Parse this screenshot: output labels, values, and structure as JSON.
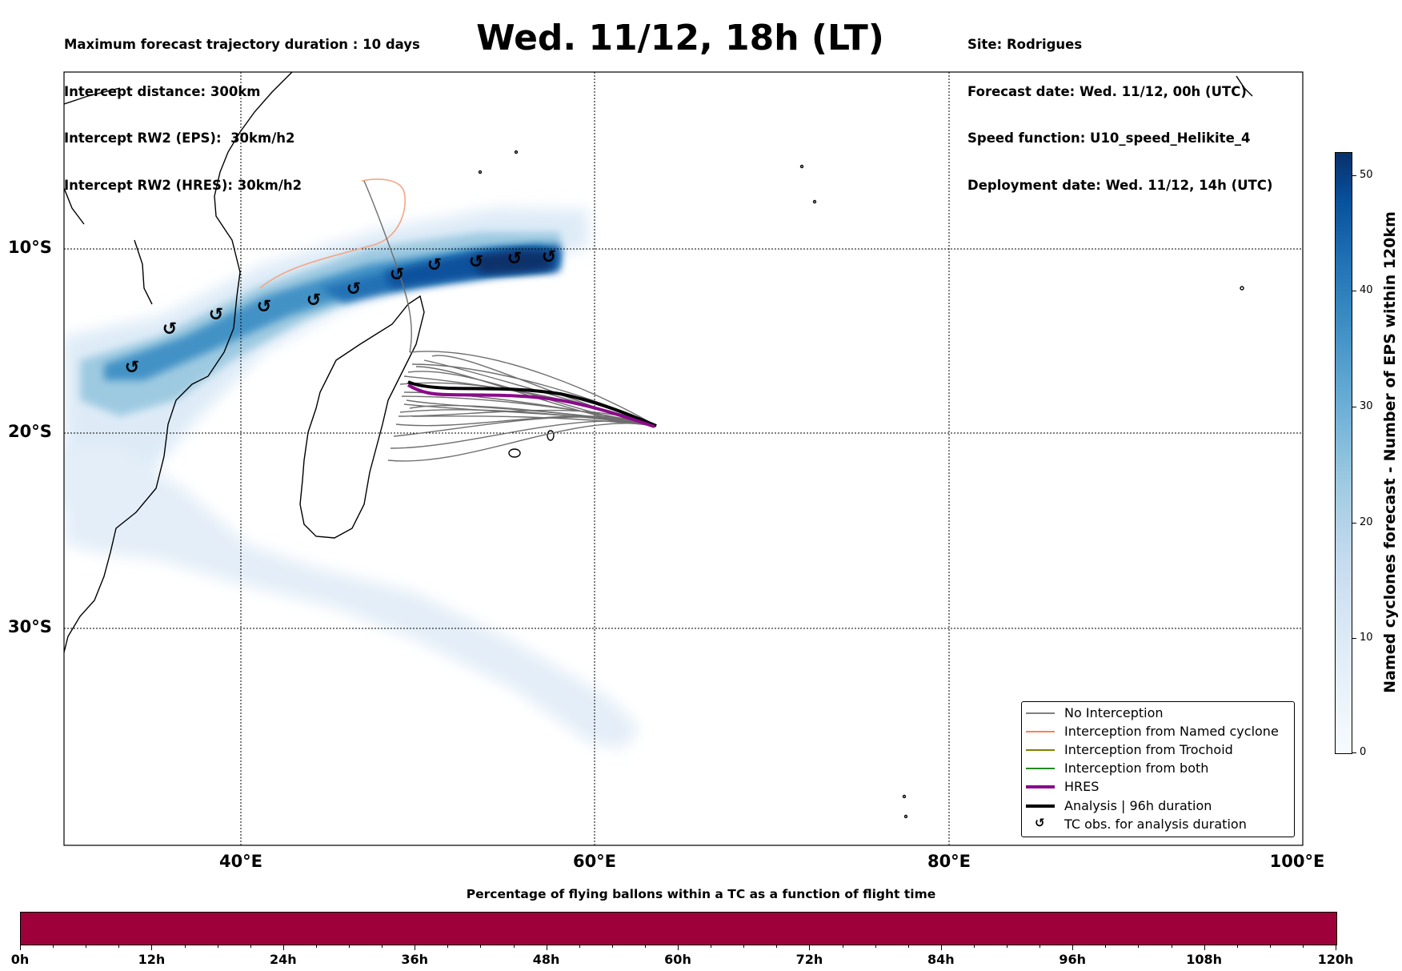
{
  "header": {
    "left_lines": [
      "Maximum forecast trajectory duration : 10 days",
      "Intercept distance: 300km",
      "Intercept RW2 (EPS):  30km/h2",
      "Intercept RW2 (HRES): 30km/h2"
    ],
    "title": "Wed. 11/12, 18h (LT)",
    "right_lines": [
      "Site: Rodrigues",
      "Forecast date: Wed. 11/12, 00h (UTC)",
      "Speed function: U10_speed_Helikite_4",
      "Deployment date: Wed. 11/12, 14h (UTC)"
    ]
  },
  "map": {
    "lat_labels": [
      "10°S",
      "20°S",
      "30°S"
    ],
    "lon_labels": [
      "40°E",
      "60°E",
      "80°E",
      "100°E"
    ],
    "colors": {
      "no_interception": "#6e6e6e",
      "named_cyclone": "#f4a582",
      "hres": "#8b0a8b",
      "analysis": "#000000",
      "density_dark": "#08306b",
      "density_light": "#deebf7"
    }
  },
  "legend": {
    "items": [
      {
        "label": "No Interception",
        "color": "#808080",
        "kind": "line",
        "width": 1.5
      },
      {
        "label": "Interception from Named cyclone",
        "color": "#ff7f50",
        "kind": "line",
        "width": 1.5
      },
      {
        "label": "Interception from Trochoid",
        "color": "#808000",
        "kind": "line",
        "width": 1.5
      },
      {
        "label": "Interception from both",
        "color": "#228b22",
        "kind": "line",
        "width": 1.5
      },
      {
        "label": "HRES",
        "color": "#8b0a8b",
        "kind": "line",
        "width": 4
      },
      {
        "label": "Analysis | 96h duration",
        "color": "#000000",
        "kind": "line",
        "width": 4
      },
      {
        "label": "TC obs. for analysis duration",
        "color": "#000000",
        "kind": "icon",
        "icon": "cyclone-symbol-icon"
      }
    ]
  },
  "colorbar": {
    "label": "Named cyclones forecast - Number of EPS within 120km",
    "ticks": [
      "0",
      "10",
      "20",
      "30",
      "40",
      "50"
    ]
  },
  "percentage_bar": {
    "title": "Percentage of flying ballons within a TC as a function of flight time",
    "ticks": [
      "0h",
      "12h",
      "24h",
      "36h",
      "48h",
      "60h",
      "72h",
      "84h",
      "96h",
      "108h",
      "120h"
    ],
    "color": "#9e003a"
  }
}
